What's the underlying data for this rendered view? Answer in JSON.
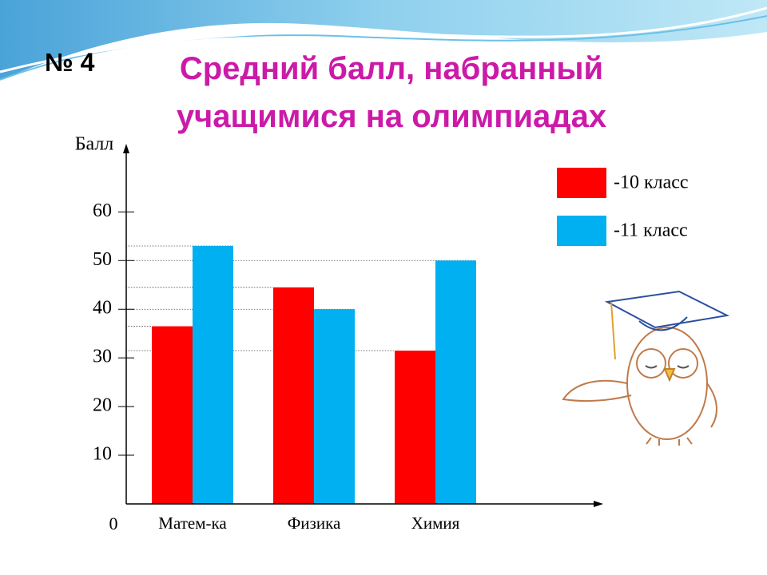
{
  "slide_label": "№ 4",
  "chart_data": {
    "type": "bar",
    "title": "Средний балл, набранный учащимися на олимпиадах",
    "y_label": "Балл",
    "categories": [
      "Матем-ка",
      "Физика",
      "Химия"
    ],
    "series": [
      {
        "name": "-10 класс",
        "color": "#ff0000",
        "values": [
          36.5,
          44.5,
          31.5
        ]
      },
      {
        "name": "-11 класс",
        "color": "#00b0f0",
        "values": [
          53,
          40,
          50
        ]
      }
    ],
    "ylim": [
      0,
      74
    ],
    "yticks": [
      0,
      10,
      20,
      30,
      40,
      50,
      60
    ],
    "reference_lines": true
  }
}
